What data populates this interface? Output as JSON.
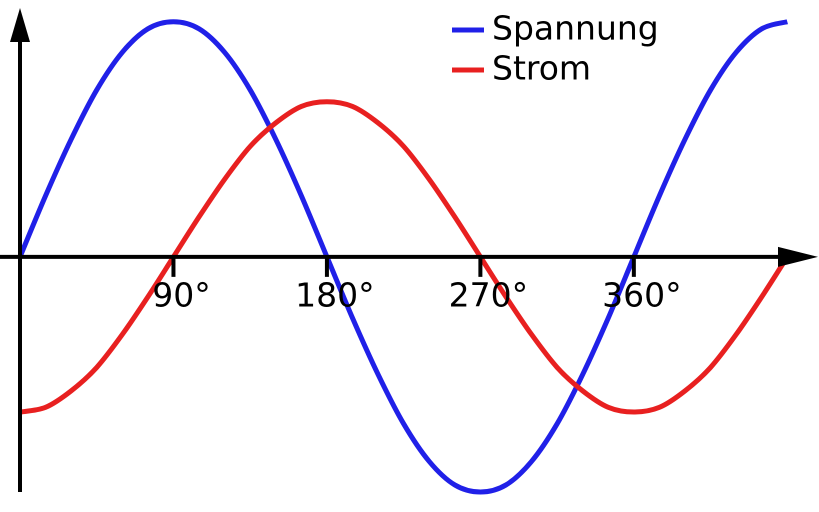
{
  "chart_data": {
    "type": "line",
    "x": [
      0,
      15,
      30,
      45,
      60,
      75,
      90,
      105,
      120,
      135,
      150,
      165,
      180,
      195,
      210,
      225,
      240,
      255,
      270,
      285,
      300,
      315,
      330,
      345,
      360,
      375,
      390,
      405,
      420,
      435,
      450
    ],
    "series": [
      {
        "name": "Spannung",
        "color": "#2020e8",
        "values": [
          0,
          0.26,
          0.5,
          0.71,
          0.87,
          0.97,
          1,
          0.97,
          0.87,
          0.71,
          0.5,
          0.26,
          0,
          -0.26,
          -0.5,
          -0.71,
          -0.87,
          -0.97,
          -1,
          -0.97,
          -0.87,
          -0.71,
          -0.5,
          -0.26,
          0,
          0.26,
          0.5,
          0.71,
          0.87,
          0.97,
          1
        ]
      },
      {
        "name": "Strom",
        "color": "#e82020",
        "values": [
          -0.66,
          -0.64,
          -0.57,
          -0.47,
          -0.33,
          -0.17,
          0,
          0.17,
          0.33,
          0.47,
          0.57,
          0.64,
          0.66,
          0.64,
          0.57,
          0.47,
          0.33,
          0.17,
          0,
          -0.17,
          -0.33,
          -0.47,
          -0.57,
          -0.64,
          -0.66,
          -0.64,
          -0.57,
          -0.47,
          -0.33,
          -0.17,
          0
        ]
      }
    ],
    "xlim": [
      0,
      468
    ],
    "ylim": [
      -1.0,
      1.05
    ],
    "xticks": [
      {
        "value": 90,
        "label": "90°"
      },
      {
        "value": 180,
        "label": "180°"
      },
      {
        "value": 270,
        "label": "270°"
      },
      {
        "value": 360,
        "label": "360°"
      }
    ],
    "legend": "top-right"
  }
}
